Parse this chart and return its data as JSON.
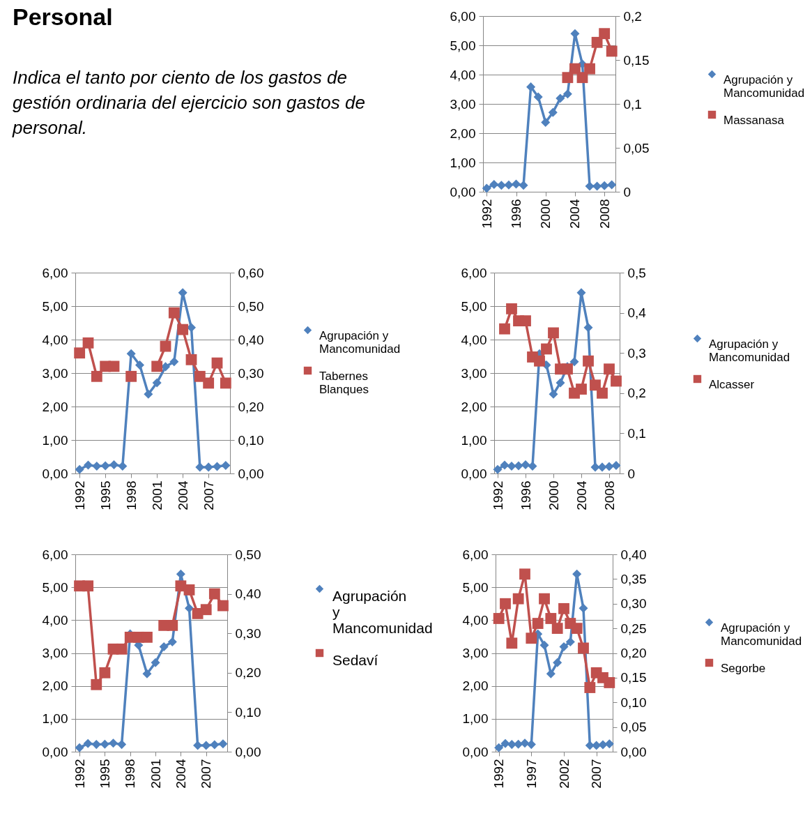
{
  "chart_data": [
    {
      "type": "other",
      "title": "Personal",
      "annotations": [
        "Indica el tanto por ciento de los gastos de gestión ordinaria del ejercicio son gastos de personal."
      ]
    },
    {
      "type": "line",
      "categories": [
        "1992",
        null,
        null,
        null,
        "1996",
        null,
        null,
        null,
        "2000",
        null,
        null,
        null,
        "2004",
        null,
        null,
        null,
        "2008",
        null
      ],
      "series": [
        {
          "name": "Agrupación y Mancomunidad",
          "color": "#4f81bd",
          "marker": "diamond",
          "values": [
            0.12,
            0.25,
            0.22,
            0.23,
            0.26,
            0.22,
            3.58,
            3.24,
            2.37,
            2.71,
            3.19,
            3.34,
            5.4,
            4.36,
            0.19,
            0.19,
            0.21,
            0.24
          ]
        },
        {
          "name": "Massanasa",
          "color": "#c0504d",
          "marker": "square",
          "axis": "y2",
          "values": [
            null,
            null,
            null,
            null,
            null,
            null,
            null,
            null,
            null,
            null,
            null,
            0.13,
            0.14,
            0.13,
            0.14,
            0.17,
            0.18,
            0.16
          ]
        }
      ],
      "ylim": [
        0,
        6
      ],
      "yticks": [
        {
          "value": 0,
          "label": "0,00"
        },
        {
          "value": 1,
          "label": "1,00"
        },
        {
          "value": 2,
          "label": "2,00"
        },
        {
          "value": 3,
          "label": "3,00"
        },
        {
          "value": 4,
          "label": "4,00"
        },
        {
          "value": 5,
          "label": "5,00"
        },
        {
          "value": 6,
          "label": "6,00"
        }
      ],
      "y2lim": [
        0,
        0.2
      ],
      "y2ticks": [
        0,
        {
          "value": 0.05,
          "label": "0,05"
        },
        {
          "value": 0.1,
          "label": "0,1"
        },
        {
          "value": 0.15,
          "label": "0,15"
        },
        {
          "value": 0.2,
          "label": "0,2"
        }
      ],
      "grid": "y",
      "legend": "right"
    },
    {
      "type": "line",
      "categories": [
        "1992",
        null,
        null,
        "1995",
        null,
        null,
        "1998",
        null,
        null,
        "2001",
        null,
        null,
        "2004",
        null,
        null,
        "2007",
        null,
        null
      ],
      "series": [
        {
          "name": "Agrupación y Mancomunidad",
          "color": "#4f81bd",
          "marker": "diamond",
          "values": [
            0.12,
            0.25,
            0.22,
            0.23,
            0.26,
            0.22,
            3.58,
            3.24,
            2.37,
            2.71,
            3.19,
            3.34,
            5.4,
            4.36,
            0.19,
            0.19,
            0.21,
            0.24
          ]
        },
        {
          "name": "Tabernes Blanques",
          "color": "#c0504d",
          "marker": "square",
          "axis": "y2",
          "values": [
            0.36,
            0.39,
            0.29,
            0.32,
            0.32,
            null,
            0.29,
            null,
            null,
            0.32,
            0.38,
            0.48,
            0.43,
            0.34,
            0.29,
            0.27,
            0.33,
            0.27
          ]
        }
      ],
      "ylim": [
        0,
        6
      ],
      "yticks": [
        {
          "value": 0,
          "label": "0,00"
        },
        {
          "value": 1,
          "label": "1,00"
        },
        {
          "value": 2,
          "label": "2,00"
        },
        {
          "value": 3,
          "label": "3,00"
        },
        {
          "value": 4,
          "label": "4,00"
        },
        {
          "value": 5,
          "label": "5,00"
        },
        {
          "value": 6,
          "label": "6,00"
        }
      ],
      "y2lim": [
        0,
        0.6
      ],
      "y2ticks": [
        {
          "value": 0,
          "label": "0,00"
        },
        {
          "value": 0.1,
          "label": "0,10"
        },
        {
          "value": 0.2,
          "label": "0,20"
        },
        {
          "value": 0.3,
          "label": "0,30"
        },
        {
          "value": 0.4,
          "label": "0,40"
        },
        {
          "value": 0.5,
          "label": "0,50"
        },
        {
          "value": 0.6,
          "label": "0,60"
        }
      ],
      "grid": "y",
      "legend": "right"
    },
    {
      "type": "line",
      "categories": [
        "1992",
        null,
        null,
        null,
        "1996",
        null,
        null,
        null,
        "2000",
        null,
        null,
        null,
        "2004",
        null,
        null,
        null,
        "2008",
        null
      ],
      "series": [
        {
          "name": "Agrupación y Mancomunidad",
          "color": "#4f81bd",
          "marker": "diamond",
          "values": [
            0.12,
            0.25,
            0.22,
            0.23,
            0.26,
            0.22,
            3.58,
            3.24,
            2.37,
            2.71,
            3.19,
            3.34,
            5.4,
            4.36,
            0.19,
            0.19,
            0.21,
            0.24
          ]
        },
        {
          "name": "Alcasser",
          "color": "#c0504d",
          "marker": "square",
          "axis": "y2",
          "values": [
            null,
            0.36,
            0.41,
            0.38,
            0.38,
            0.29,
            0.28,
            0.31,
            0.35,
            0.26,
            0.26,
            0.2,
            0.21,
            0.28,
            0.22,
            0.2,
            0.26,
            0.23
          ]
        }
      ],
      "ylim": [
        0,
        6
      ],
      "yticks": [
        {
          "value": 0,
          "label": "0,00"
        },
        {
          "value": 1,
          "label": "1,00"
        },
        {
          "value": 2,
          "label": "2,00"
        },
        {
          "value": 3,
          "label": "3,00"
        },
        {
          "value": 4,
          "label": "4,00"
        },
        {
          "value": 5,
          "label": "5,00"
        },
        {
          "value": 6,
          "label": "6,00"
        }
      ],
      "y2lim": [
        0,
        0.5
      ],
      "y2ticks": [
        0,
        {
          "value": 0.1,
          "label": "0,1"
        },
        {
          "value": 0.2,
          "label": "0,2"
        },
        {
          "value": 0.3,
          "label": "0,3"
        },
        {
          "value": 0.4,
          "label": "0,4"
        },
        {
          "value": 0.5,
          "label": "0,5"
        }
      ],
      "grid": "y",
      "legend": "right"
    },
    {
      "type": "line",
      "categories": [
        "1992",
        null,
        null,
        "1995",
        null,
        null,
        "1998",
        null,
        null,
        "2001",
        null,
        null,
        "2004",
        null,
        null,
        "2007",
        null,
        null
      ],
      "series": [
        {
          "name": "Agrupación y Mancomunidad",
          "color": "#4f81bd",
          "marker": "diamond",
          "values": [
            0.12,
            0.25,
            0.22,
            0.23,
            0.26,
            0.22,
            3.58,
            3.24,
            2.37,
            2.71,
            3.19,
            3.34,
            5.4,
            4.36,
            0.19,
            0.19,
            0.21,
            0.24
          ]
        },
        {
          "name": "Sedaví",
          "color": "#c0504d",
          "marker": "square",
          "axis": "y2",
          "values": [
            0.42,
            0.42,
            0.17,
            0.2,
            0.26,
            0.26,
            0.29,
            0.29,
            0.29,
            null,
            0.32,
            0.32,
            0.42,
            0.41,
            0.35,
            0.36,
            0.4,
            0.37
          ]
        }
      ],
      "ylim": [
        0,
        6
      ],
      "yticks": [
        {
          "value": 0,
          "label": "0,00"
        },
        {
          "value": 1,
          "label": "1,00"
        },
        {
          "value": 2,
          "label": "2,00"
        },
        {
          "value": 3,
          "label": "3,00"
        },
        {
          "value": 4,
          "label": "4,00"
        },
        {
          "value": 5,
          "label": "5,00"
        },
        {
          "value": 6,
          "label": "6,00"
        }
      ],
      "y2lim": [
        0,
        0.5
      ],
      "y2ticks": [
        {
          "value": 0,
          "label": "0,00"
        },
        {
          "value": 0.1,
          "label": "0,10"
        },
        {
          "value": 0.2,
          "label": "0,20"
        },
        {
          "value": 0.3,
          "label": "0,30"
        },
        {
          "value": 0.4,
          "label": "0,40"
        },
        {
          "value": 0.5,
          "label": "0,50"
        }
      ],
      "grid": "y",
      "legend": "right"
    },
    {
      "type": "line",
      "categories": [
        "1992",
        null,
        null,
        null,
        null,
        "1997",
        null,
        null,
        null,
        null,
        "2002",
        null,
        null,
        null,
        null,
        "2007",
        null,
        null
      ],
      "series": [
        {
          "name": "Agrupación y Mancomunidad",
          "color": "#4f81bd",
          "marker": "diamond",
          "values": [
            0.12,
            0.25,
            0.22,
            0.23,
            0.26,
            0.22,
            3.58,
            3.24,
            2.37,
            2.71,
            3.19,
            3.34,
            5.4,
            4.36,
            0.19,
            0.19,
            0.21,
            0.24
          ]
        },
        {
          "name": "Segorbe",
          "color": "#c0504d",
          "marker": "square",
          "axis": "y2",
          "values": [
            0.27,
            0.3,
            0.22,
            0.31,
            0.36,
            0.23,
            0.26,
            0.31,
            0.27,
            0.25,
            0.29,
            0.26,
            0.25,
            0.21,
            0.13,
            0.16,
            0.15,
            0.14
          ]
        }
      ],
      "ylim": [
        0,
        6
      ],
      "yticks": [
        {
          "value": 0,
          "label": "0,00"
        },
        {
          "value": 1,
          "label": "1,00"
        },
        {
          "value": 2,
          "label": "2,00"
        },
        {
          "value": 3,
          "label": "3,00"
        },
        {
          "value": 4,
          "label": "4,00"
        },
        {
          "value": 5,
          "label": "5,00"
        },
        {
          "value": 6,
          "label": "6,00"
        }
      ],
      "y2lim": [
        0,
        0.4
      ],
      "y2ticks": [
        {
          "value": 0,
          "label": "0,00"
        },
        {
          "value": 0.05,
          "label": "0,05"
        },
        {
          "value": 0.1,
          "label": "0,10"
        },
        {
          "value": 0.15,
          "label": "0,15"
        },
        {
          "value": 0.2,
          "label": "0,20"
        },
        {
          "value": 0.25,
          "label": "0,25"
        },
        {
          "value": 0.3,
          "label": "0,30"
        },
        {
          "value": 0.35,
          "label": "0,35"
        },
        {
          "value": 0.4,
          "label": "0,40"
        }
      ],
      "grid": "y",
      "legend": "right"
    }
  ]
}
